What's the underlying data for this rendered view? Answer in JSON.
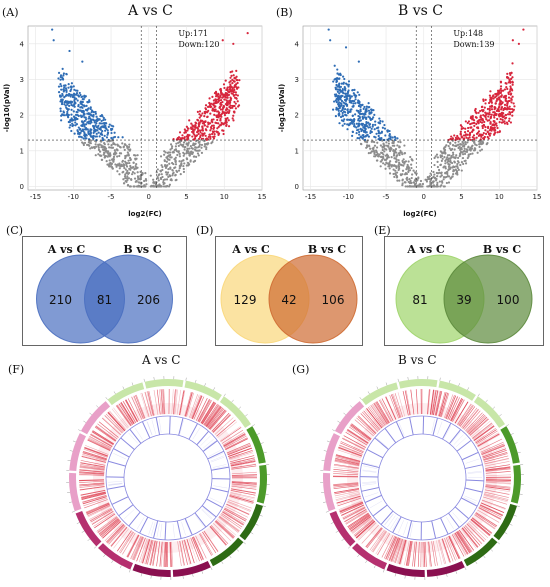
{
  "panels": {
    "A": "(A)",
    "B": "(B)",
    "C": "(C)",
    "D": "(D)",
    "E": "(E)",
    "F": "(F)",
    "G": "(G)"
  },
  "chart_data": [
    {
      "type": "scatter",
      "panel": "A",
      "title": "A vs C",
      "xlabel": "log2(FC)",
      "ylabel": "-log10(pVal)",
      "xlim": [
        -16,
        15
      ],
      "ylim": [
        -0.1,
        4.5
      ],
      "xticks": [
        -15,
        -10,
        -5,
        0,
        5,
        10,
        15
      ],
      "yticks": [
        0,
        1,
        2,
        3,
        4
      ],
      "up_label": "Up:171",
      "down_label": "Down:120",
      "thresholds": {
        "fc": [
          -1,
          1
        ],
        "pval": 1.3
      },
      "colors": {
        "up": "#d7263d",
        "down": "#2f6db5",
        "ns": "#8c8c8c"
      },
      "grid": true,
      "outliers": [
        [
          -12.8,
          4.4
        ],
        [
          -12.6,
          4.1
        ],
        [
          -10.5,
          3.8
        ],
        [
          -8.8,
          3.5
        ],
        [
          9.8,
          4.1
        ],
        [
          11.2,
          4.0
        ],
        [
          13.1,
          4.3
        ]
      ]
    },
    {
      "type": "scatter",
      "panel": "B",
      "title": "B vs C",
      "xlabel": "log2(FC)",
      "ylabel": "-log10(pVal)",
      "xlim": [
        -16,
        15
      ],
      "ylim": [
        -0.1,
        4.5
      ],
      "xticks": [
        -15,
        -10,
        -5,
        0,
        5,
        10,
        15
      ],
      "yticks": [
        0,
        1,
        2,
        3,
        4
      ],
      "up_label": "Up:148",
      "down_label": "Down:139",
      "thresholds": {
        "fc": [
          -1,
          1
        ],
        "pval": 1.3
      },
      "colors": {
        "up": "#d7263d",
        "down": "#2f6db5",
        "ns": "#8c8c8c"
      },
      "grid": true,
      "outliers": [
        [
          -12.6,
          4.4
        ],
        [
          -12.4,
          4.1
        ],
        [
          -10.3,
          3.9
        ],
        [
          -8.6,
          3.5
        ],
        [
          11.8,
          4.1
        ],
        [
          13.2,
          4.4
        ],
        [
          12.6,
          4.0
        ]
      ]
    },
    {
      "type": "venn",
      "panel": "C",
      "sets": [
        "A vs C",
        "B vs C"
      ],
      "values": {
        "left_only": 210,
        "overlap": 81,
        "right_only": 206
      },
      "colors": [
        "#4a6fc0",
        "#4a6fc0"
      ]
    },
    {
      "type": "venn",
      "panel": "D",
      "sets": [
        "A vs C",
        "B vs C"
      ],
      "values": {
        "left_only": 129,
        "overlap": 42,
        "right_only": 106
      },
      "colors": [
        "#f9d77a",
        "#cf6b32"
      ]
    },
    {
      "type": "venn",
      "panel": "E",
      "sets": [
        "A vs C",
        "B vs C"
      ],
      "values": {
        "left_only": 81,
        "overlap": 39,
        "right_only": 100
      },
      "colors": [
        "#9ed46a",
        "#5c8a3c"
      ]
    },
    {
      "type": "circos",
      "panel": "F",
      "title": "A vs C",
      "colors": {
        "outer_light": "#c8e6a8",
        "outer_green": "#4c9a2a",
        "outer_dark": "#2e6b14",
        "outer_pink": "#e8a0c8",
        "outer_magenta": "#b5306f",
        "outer_wine": "#8a1050",
        "heat": "#e04c5c",
        "link": "#8a8ae0"
      }
    },
    {
      "type": "circos",
      "panel": "G",
      "title": "B vs C",
      "colors": {
        "outer_light": "#c8e6a8",
        "outer_green": "#4c9a2a",
        "outer_dark": "#2e6b14",
        "outer_pink": "#e8a0c8",
        "outer_magenta": "#b5306f",
        "outer_wine": "#8a1050",
        "heat": "#e04c5c",
        "link": "#8a8ae0"
      }
    }
  ]
}
